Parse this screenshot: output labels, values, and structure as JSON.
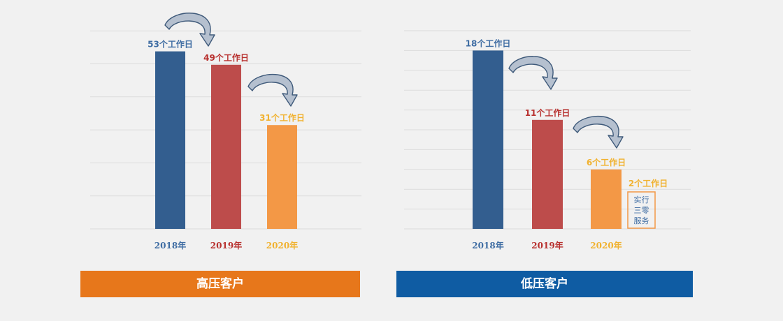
{
  "chart_data": [
    {
      "type": "bar",
      "categories": [
        "2018年",
        "2019年",
        "2020年"
      ],
      "values": [
        53,
        49,
        31
      ],
      "data_labels": [
        "53个工作日",
        "49个工作日",
        "31个工作日"
      ],
      "colors": [
        "#335e8f",
        "#bd4c4b",
        "#f39846"
      ],
      "label_colors": [
        "#3f6da3",
        "#b8312f",
        "#f1b230"
      ],
      "ylim": [
        0,
        60
      ],
      "grid": true,
      "title": "",
      "banner": "高压客户",
      "banner_color": "#e7771b"
    },
    {
      "type": "bar",
      "categories": [
        "2018年",
        "2019年",
        "2020年"
      ],
      "values": [
        18,
        11,
        6
      ],
      "data_labels": [
        "18个工作日",
        "11个工作日",
        "6个工作日"
      ],
      "colors": [
        "#335e8f",
        "#bd4c4b",
        "#f39846"
      ],
      "label_colors": [
        "#3f6da3",
        "#b8312f",
        "#f1b230"
      ],
      "ylim": [
        0,
        20
      ],
      "grid": true,
      "title": "",
      "banner": "低压客户",
      "banner_color": "#0f5ca3",
      "extra_annotation": {
        "label": "2个工作日",
        "box_lines": [
          "实行",
          "三零",
          "服务"
        ],
        "label_color": "#f1b230",
        "box_text_color": "#3f6da3",
        "box_border_color": "#f39846"
      }
    }
  ],
  "colors": {
    "background": "#f1f1f1",
    "grid": "#dcdcdc",
    "arrow_fill": "#b5c0cf",
    "arrow_stroke": "#3f5a7a"
  },
  "icons": [
    "curved-arrow-icon"
  ]
}
